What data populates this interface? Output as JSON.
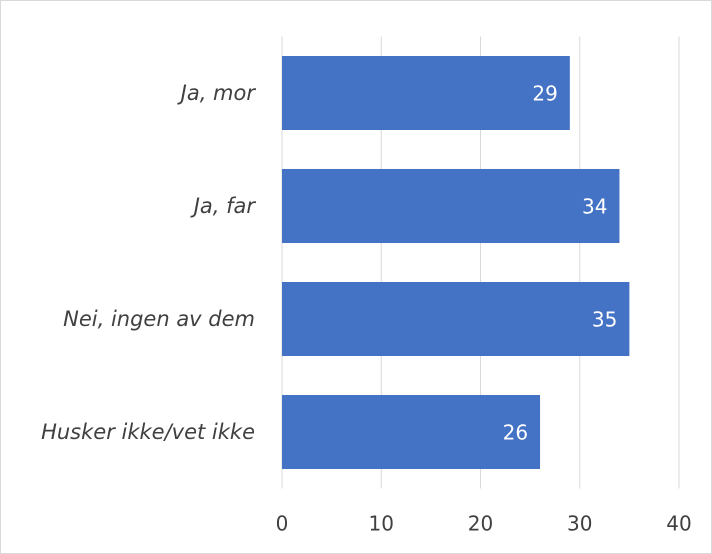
{
  "chart_data": {
    "type": "bar",
    "orientation": "horizontal",
    "categories": [
      "Ja, mor",
      "Ja, far",
      "Nei, ingen av dem",
      "Husker ikke/vet ikke"
    ],
    "values": [
      29,
      34,
      35,
      26
    ],
    "color": "#4472c4",
    "xlim": [
      0,
      40
    ],
    "xticks": [
      0,
      10,
      20,
      30,
      40
    ],
    "grid": true
  }
}
